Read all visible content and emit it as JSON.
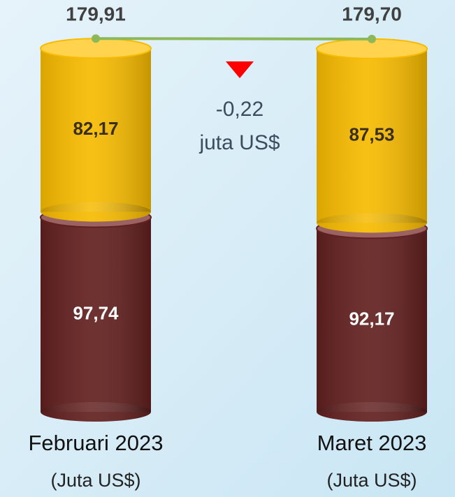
{
  "chart_data": {
    "type": "bar",
    "stacked": true,
    "categories": [
      "Februari 2023",
      "Maret 2023"
    ],
    "category_units": [
      "(Juta US$)",
      "(Juta US$)"
    ],
    "series": [
      {
        "color": "#62201f",
        "top_color": "#9a6262",
        "text_color": "#ffffff",
        "values": [
          97.74,
          92.17
        ],
        "value_labels": [
          "97,74",
          "92,17"
        ]
      },
      {
        "color": "#f7bb00",
        "top_color": "#ffd34d",
        "text_color": "#3a2e1e",
        "values": [
          82.17,
          87.53
        ],
        "value_labels": [
          "82,17",
          "87,53"
        ]
      }
    ],
    "totals": {
      "color": "#8cb85a",
      "values": [
        179.91,
        179.7
      ],
      "value_labels": [
        "179,91",
        "179,70"
      ]
    },
    "change": {
      "text": "-0,22",
      "unit": "juta US$",
      "color": "#ff0000"
    }
  }
}
